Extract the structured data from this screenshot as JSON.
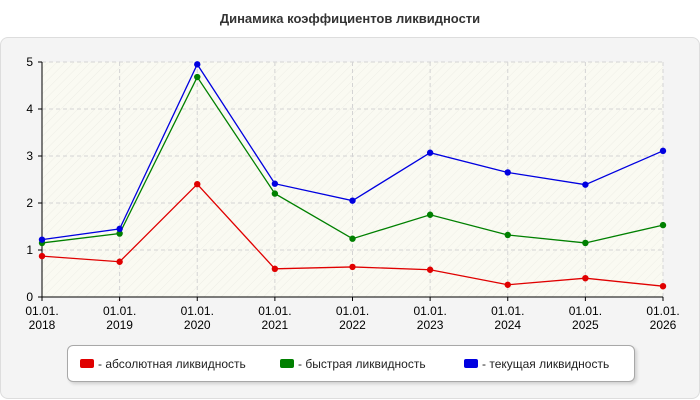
{
  "chart_data": {
    "type": "line",
    "title": "Динамика коэффициентов ликвидности",
    "x_ticks": [
      [
        "01.01.",
        "2018"
      ],
      [
        "01.01.",
        "2019"
      ],
      [
        "01.01.",
        "2020"
      ],
      [
        "01.01.",
        "2021"
      ],
      [
        "01.01.",
        "2022"
      ],
      [
        "01.01.",
        "2023"
      ],
      [
        "01.01.",
        "2024"
      ],
      [
        "01.01.",
        "2025"
      ],
      [
        "01.01.",
        "2026"
      ]
    ],
    "ylim": [
      0,
      5
    ],
    "y_ticks": [
      0,
      1,
      2,
      3,
      4,
      5
    ],
    "grid": true,
    "legend_position": "bottom",
    "series": [
      {
        "name": "- абсолютная ликвидность",
        "color": "#e00000",
        "values": [
          0.87,
          0.75,
          2.4,
          0.6,
          0.64,
          0.58,
          0.26,
          0.4,
          0.23
        ]
      },
      {
        "name": "- быстрая ликвидность",
        "color": "#008000",
        "values": [
          1.15,
          1.35,
          4.68,
          2.2,
          1.24,
          1.75,
          1.32,
          1.15,
          1.53
        ]
      },
      {
        "name": "- текущая ликвидность",
        "color": "#0000e0",
        "values": [
          1.22,
          1.45,
          4.95,
          2.41,
          2.05,
          3.07,
          2.65,
          2.39,
          3.11
        ]
      }
    ]
  }
}
